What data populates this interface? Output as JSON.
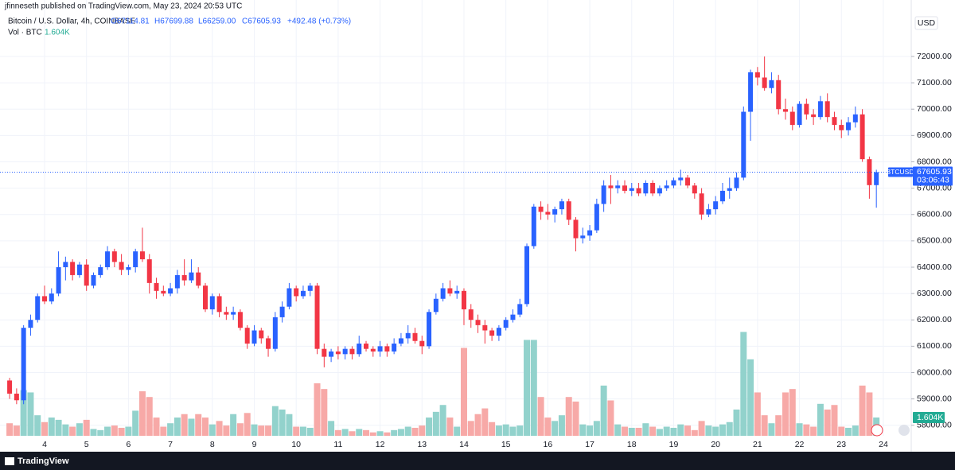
{
  "header": {
    "publisher": "jfinneseth published on TradingView.com, May 23, 2024 20:53 UTC"
  },
  "legend": {
    "symbol": "Bitcoin / U.S. Dollar, 4h, COINBASE",
    "open": "O67114.81",
    "high": "H67699.88",
    "low": "L66259.00",
    "close": "C67605.93",
    "change": "+492.48 (+0.73%)",
    "volume_name": "Vol · BTC",
    "volume_value": "1.604K"
  },
  "price_axis": {
    "currency": "USD",
    "symbol_tag": "BTCUSD",
    "last_price": "67605.93",
    "countdown": "03:06:43",
    "volume_tag": "1.604K"
  },
  "footer": {
    "brand": "TradingView"
  },
  "chart_data": {
    "type": "candlestick",
    "up_color": "#2962ff",
    "down_color": "#f23645",
    "volume_up_color": "#92d2cc",
    "volume_down_color": "#f7a9a7",
    "ylim": [
      57600,
      73720
    ],
    "vlim": [
      0,
      37.2
    ],
    "grid": true,
    "yticks": [
      {
        "value": 58000,
        "label": "58000.00"
      },
      {
        "value": 59000,
        "label": "59000.00"
      },
      {
        "value": 60000,
        "label": "60000.00"
      },
      {
        "value": 61000,
        "label": "61000.00"
      },
      {
        "value": 62000,
        "label": "62000.00"
      },
      {
        "value": 63000,
        "label": "63000.00"
      },
      {
        "value": 64000,
        "label": "64000.00"
      },
      {
        "value": 65000,
        "label": "65000.00"
      },
      {
        "value": 66000,
        "label": "66000.00"
      },
      {
        "value": 67000,
        "label": "67000.00"
      },
      {
        "value": 68000,
        "label": "68000.00"
      },
      {
        "value": 69000,
        "label": "69000.00"
      },
      {
        "value": 70000,
        "label": "70000.00"
      },
      {
        "value": 71000,
        "label": "71000.00"
      },
      {
        "value": 72000,
        "label": "72000.00"
      }
    ],
    "day_labels": [
      "4",
      "5",
      "6",
      "7",
      "8",
      "9",
      "10",
      "11",
      "12",
      "13",
      "14",
      "15",
      "16",
      "17",
      "18",
      "19",
      "20",
      "21",
      "22",
      "23",
      "24"
    ],
    "candles": [
      [
        59700,
        59800,
        59000,
        59200
      ],
      [
        59200,
        59400,
        58800,
        58950
      ],
      [
        58950,
        61800,
        58800,
        61700
      ],
      [
        61700,
        62200,
        61400,
        62000
      ],
      [
        62000,
        63000,
        61900,
        62900
      ],
      [
        62900,
        63300,
        62600,
        62700
      ],
      [
        62700,
        63200,
        62600,
        63000
      ],
      [
        63000,
        64600,
        62900,
        64000
      ],
      [
        64000,
        64400,
        63500,
        64200
      ],
      [
        64200,
        64300,
        63500,
        63700
      ],
      [
        63700,
        64200,
        63600,
        64100
      ],
      [
        64100,
        64300,
        63100,
        63300
      ],
      [
        63300,
        63800,
        63200,
        63700
      ],
      [
        63700,
        64100,
        63600,
        64000
      ],
      [
        64000,
        64800,
        63900,
        64600
      ],
      [
        64600,
        64700,
        64000,
        64200
      ],
      [
        64200,
        64500,
        63700,
        63900
      ],
      [
        63900,
        64100,
        63700,
        64000
      ],
      [
        64000,
        64700,
        63800,
        64600
      ],
      [
        64600,
        65500,
        64200,
        64300
      ],
      [
        64300,
        64500,
        63000,
        63400
      ],
      [
        63400,
        63600,
        62800,
        63100
      ],
      [
        63100,
        63300,
        62900,
        63000
      ],
      [
        63000,
        63400,
        62900,
        63200
      ],
      [
        63200,
        63900,
        63000,
        63700
      ],
      [
        63700,
        64300,
        63300,
        63500
      ],
      [
        63500,
        64300,
        63400,
        63800
      ],
      [
        63800,
        64000,
        63200,
        63300
      ],
      [
        63300,
        63400,
        62300,
        62400
      ],
      [
        62400,
        63000,
        62200,
        62900
      ],
      [
        62900,
        63000,
        62100,
        62300
      ],
      [
        62300,
        62500,
        62000,
        62200
      ],
      [
        62200,
        62500,
        62000,
        62300
      ],
      [
        62300,
        62400,
        61600,
        61700
      ],
      [
        61700,
        61800,
        60900,
        61100
      ],
      [
        61100,
        61800,
        61000,
        61600
      ],
      [
        61600,
        61700,
        61100,
        61300
      ],
      [
        61300,
        61400,
        60600,
        60900
      ],
      [
        60900,
        62300,
        60800,
        62100
      ],
      [
        62100,
        62700,
        61900,
        62500
      ],
      [
        62500,
        63400,
        62400,
        63200
      ],
      [
        63200,
        63300,
        62700,
        62900
      ],
      [
        62900,
        63300,
        62800,
        63100
      ],
      [
        63100,
        63400,
        62900,
        63300
      ],
      [
        63300,
        63400,
        60700,
        60900
      ],
      [
        60900,
        61100,
        60200,
        60600
      ],
      [
        60600,
        60900,
        60400,
        60800
      ],
      [
        60800,
        61000,
        60500,
        60700
      ],
      [
        60700,
        61000,
        60500,
        60900
      ],
      [
        60900,
        61000,
        60500,
        60700
      ],
      [
        60700,
        61400,
        60600,
        61100
      ],
      [
        61100,
        61200,
        60800,
        60900
      ],
      [
        60900,
        61000,
        60600,
        60800
      ],
      [
        60800,
        61200,
        60600,
        61000
      ],
      [
        61000,
        61100,
        60600,
        60800
      ],
      [
        60800,
        61300,
        60700,
        61100
      ],
      [
        61100,
        61500,
        61000,
        61300
      ],
      [
        61300,
        61800,
        61100,
        61500
      ],
      [
        61500,
        61700,
        61100,
        61200
      ],
      [
        61200,
        61400,
        60700,
        61000
      ],
      [
        61000,
        62400,
        60900,
        62300
      ],
      [
        62300,
        63000,
        62200,
        62800
      ],
      [
        62800,
        63400,
        62700,
        63200
      ],
      [
        63200,
        63500,
        62900,
        63000
      ],
      [
        63000,
        63300,
        62800,
        63100
      ],
      [
        63100,
        63200,
        61800,
        62400
      ],
      [
        62400,
        62600,
        61700,
        62000
      ],
      [
        62000,
        62200,
        61500,
        61800
      ],
      [
        61800,
        62000,
        61100,
        61600
      ],
      [
        61600,
        61700,
        61200,
        61400
      ],
      [
        61400,
        61800,
        61200,
        61700
      ],
      [
        61700,
        62100,
        61600,
        62000
      ],
      [
        62000,
        62400,
        61900,
        62200
      ],
      [
        62200,
        62800,
        62100,
        62600
      ],
      [
        62600,
        64900,
        62500,
        64800
      ],
      [
        64800,
        66400,
        64700,
        66300
      ],
      [
        66300,
        66500,
        65800,
        66100
      ],
      [
        66100,
        66400,
        65800,
        66000
      ],
      [
        66000,
        66300,
        65700,
        66200
      ],
      [
        66200,
        66600,
        66000,
        66500
      ],
      [
        66500,
        66600,
        65600,
        65800
      ],
      [
        65800,
        65900,
        64600,
        65100
      ],
      [
        65100,
        65500,
        64900,
        65200
      ],
      [
        65200,
        65600,
        65000,
        65400
      ],
      [
        65400,
        66600,
        65300,
        66400
      ],
      [
        66400,
        67300,
        66100,
        67100
      ],
      [
        67100,
        67500,
        66400,
        67000
      ],
      [
        67000,
        67300,
        66800,
        67100
      ],
      [
        67100,
        67300,
        66800,
        66900
      ],
      [
        66900,
        67200,
        66700,
        67000
      ],
      [
        67000,
        67200,
        66700,
        66800
      ],
      [
        66800,
        67300,
        66700,
        67200
      ],
      [
        67200,
        67300,
        66700,
        66800
      ],
      [
        66800,
        67100,
        66700,
        67000
      ],
      [
        67000,
        67300,
        66900,
        67100
      ],
      [
        67100,
        67400,
        67000,
        67300
      ],
      [
        67300,
        67700,
        67100,
        67400
      ],
      [
        67400,
        67500,
        67000,
        67100
      ],
      [
        67100,
        67200,
        66600,
        66800
      ],
      [
        66800,
        67000,
        65800,
        66000
      ],
      [
        66000,
        66400,
        65900,
        66200
      ],
      [
        66200,
        66700,
        66000,
        66500
      ],
      [
        66500,
        67200,
        66400,
        66900
      ],
      [
        66900,
        67400,
        66600,
        67000
      ],
      [
        67000,
        67600,
        66900,
        67400
      ],
      [
        67400,
        70100,
        67300,
        69900
      ],
      [
        69900,
        71500,
        68800,
        71400
      ],
      [
        71400,
        71600,
        70900,
        71200
      ],
      [
        71200,
        72000,
        70700,
        70800
      ],
      [
        70800,
        71400,
        70600,
        71100
      ],
      [
        71100,
        71300,
        69800,
        70000
      ],
      [
        70000,
        70400,
        69600,
        69900
      ],
      [
        69900,
        70100,
        69200,
        69400
      ],
      [
        69400,
        70300,
        69300,
        70200
      ],
      [
        70200,
        70400,
        69600,
        69800
      ],
      [
        69800,
        70000,
        69400,
        69700
      ],
      [
        69700,
        70500,
        69600,
        70300
      ],
      [
        70300,
        70600,
        69500,
        69700
      ],
      [
        69700,
        69900,
        69200,
        69400
      ],
      [
        69400,
        69600,
        68900,
        69200
      ],
      [
        69200,
        69700,
        69000,
        69500
      ],
      [
        69500,
        70100,
        69300,
        69800
      ],
      [
        69800,
        70000,
        68000,
        68100
      ],
      [
        68100,
        68200,
        66600,
        67115
      ],
      [
        67114.81,
        67699.88,
        66259,
        67605.93
      ]
    ],
    "volume": [
      1.1,
      0.9,
      4.0,
      3.8,
      1.8,
      1.2,
      1.6,
      1.4,
      1.0,
      0.8,
      1.1,
      1.4,
      0.6,
      0.5,
      0.8,
      0.9,
      0.7,
      0.8,
      2.2,
      3.9,
      3.4,
      1.6,
      0.8,
      1.1,
      1.6,
      1.9,
      1.5,
      1.9,
      1.6,
      1.0,
      1.3,
      0.9,
      1.9,
      1.1,
      2.0,
      1.0,
      0.9,
      0.9,
      2.6,
      2.3,
      1.9,
      0.8,
      0.8,
      0.7,
      4.6,
      4.1,
      1.3,
      0.5,
      0.6,
      0.4,
      0.6,
      0.5,
      0.3,
      0.4,
      0.3,
      0.5,
      0.6,
      0.8,
      0.7,
      0.9,
      1.6,
      2.1,
      2.7,
      1.6,
      0.8,
      7.7,
      1.3,
      1.9,
      2.4,
      1.2,
      0.9,
      1.0,
      0.8,
      0.9,
      8.4,
      8.4,
      3.4,
      1.6,
      1.3,
      1.8,
      3.4,
      3.0,
      1.0,
      0.9,
      1.3,
      4.4,
      3.1,
      1.0,
      0.8,
      0.7,
      0.7,
      1.1,
      0.8,
      0.6,
      0.8,
      0.7,
      1.0,
      0.9,
      0.5,
      1.3,
      0.9,
      0.8,
      1.0,
      1.2,
      2.3,
      9.1,
      6.7,
      3.8,
      1.8,
      1.1,
      1.8,
      3.8,
      4.1,
      1.1,
      1.0,
      0.8,
      2.8,
      2.3,
      2.7,
      0.8,
      0.7,
      0.9,
      4.4,
      3.8,
      1.604
    ]
  }
}
